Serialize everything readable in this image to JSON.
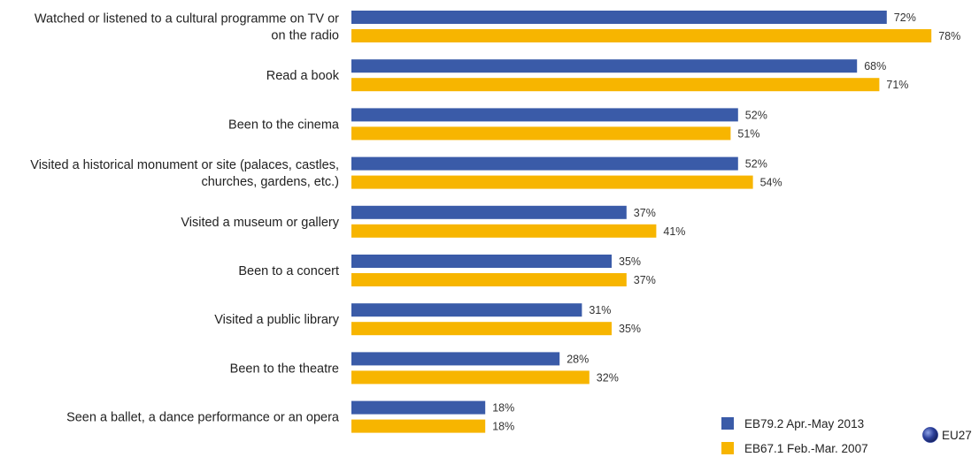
{
  "chart_data": {
    "type": "bar",
    "orientation": "horizontal",
    "categories": [
      [
        "Watched or listened to a cultural programme on TV or",
        "on the radio"
      ],
      [
        "Read a book"
      ],
      [
        "Been to the cinema"
      ],
      [
        "Visited a historical monument or site (palaces, castles,",
        "churches, gardens, etc.)"
      ],
      [
        "Visited a museum or gallery"
      ],
      [
        "Been to a concert"
      ],
      [
        "Visited a public library"
      ],
      [
        "Been to the theatre"
      ],
      [
        "Seen a ballet, a dance performance or an opera"
      ]
    ],
    "series": [
      {
        "name": "EB79.2 Apr.-May 2013",
        "color": "#3a5ba8",
        "values": [
          72,
          68,
          52,
          52,
          37,
          35,
          31,
          28,
          18
        ],
        "labels": [
          "72%",
          "68%",
          "52%",
          "52%",
          "37%",
          "35%",
          "31%",
          "28%",
          "18%"
        ]
      },
      {
        "name": "EB67.1 Feb.-Mar. 2007",
        "color": "#f7b500",
        "values": [
          78,
          71,
          51,
          54,
          41,
          37,
          35,
          32,
          18
        ],
        "labels": [
          "78%",
          "71%",
          "51%",
          "54%",
          "41%",
          "37%",
          "35%",
          "32%",
          "18%"
        ]
      }
    ],
    "xlim": [
      0,
      100
    ],
    "grid": false,
    "legend": "bottom-right",
    "region_badge": {
      "label": "EU27",
      "icon": "eu-globe-icon",
      "color": "#2b3f9a"
    }
  }
}
